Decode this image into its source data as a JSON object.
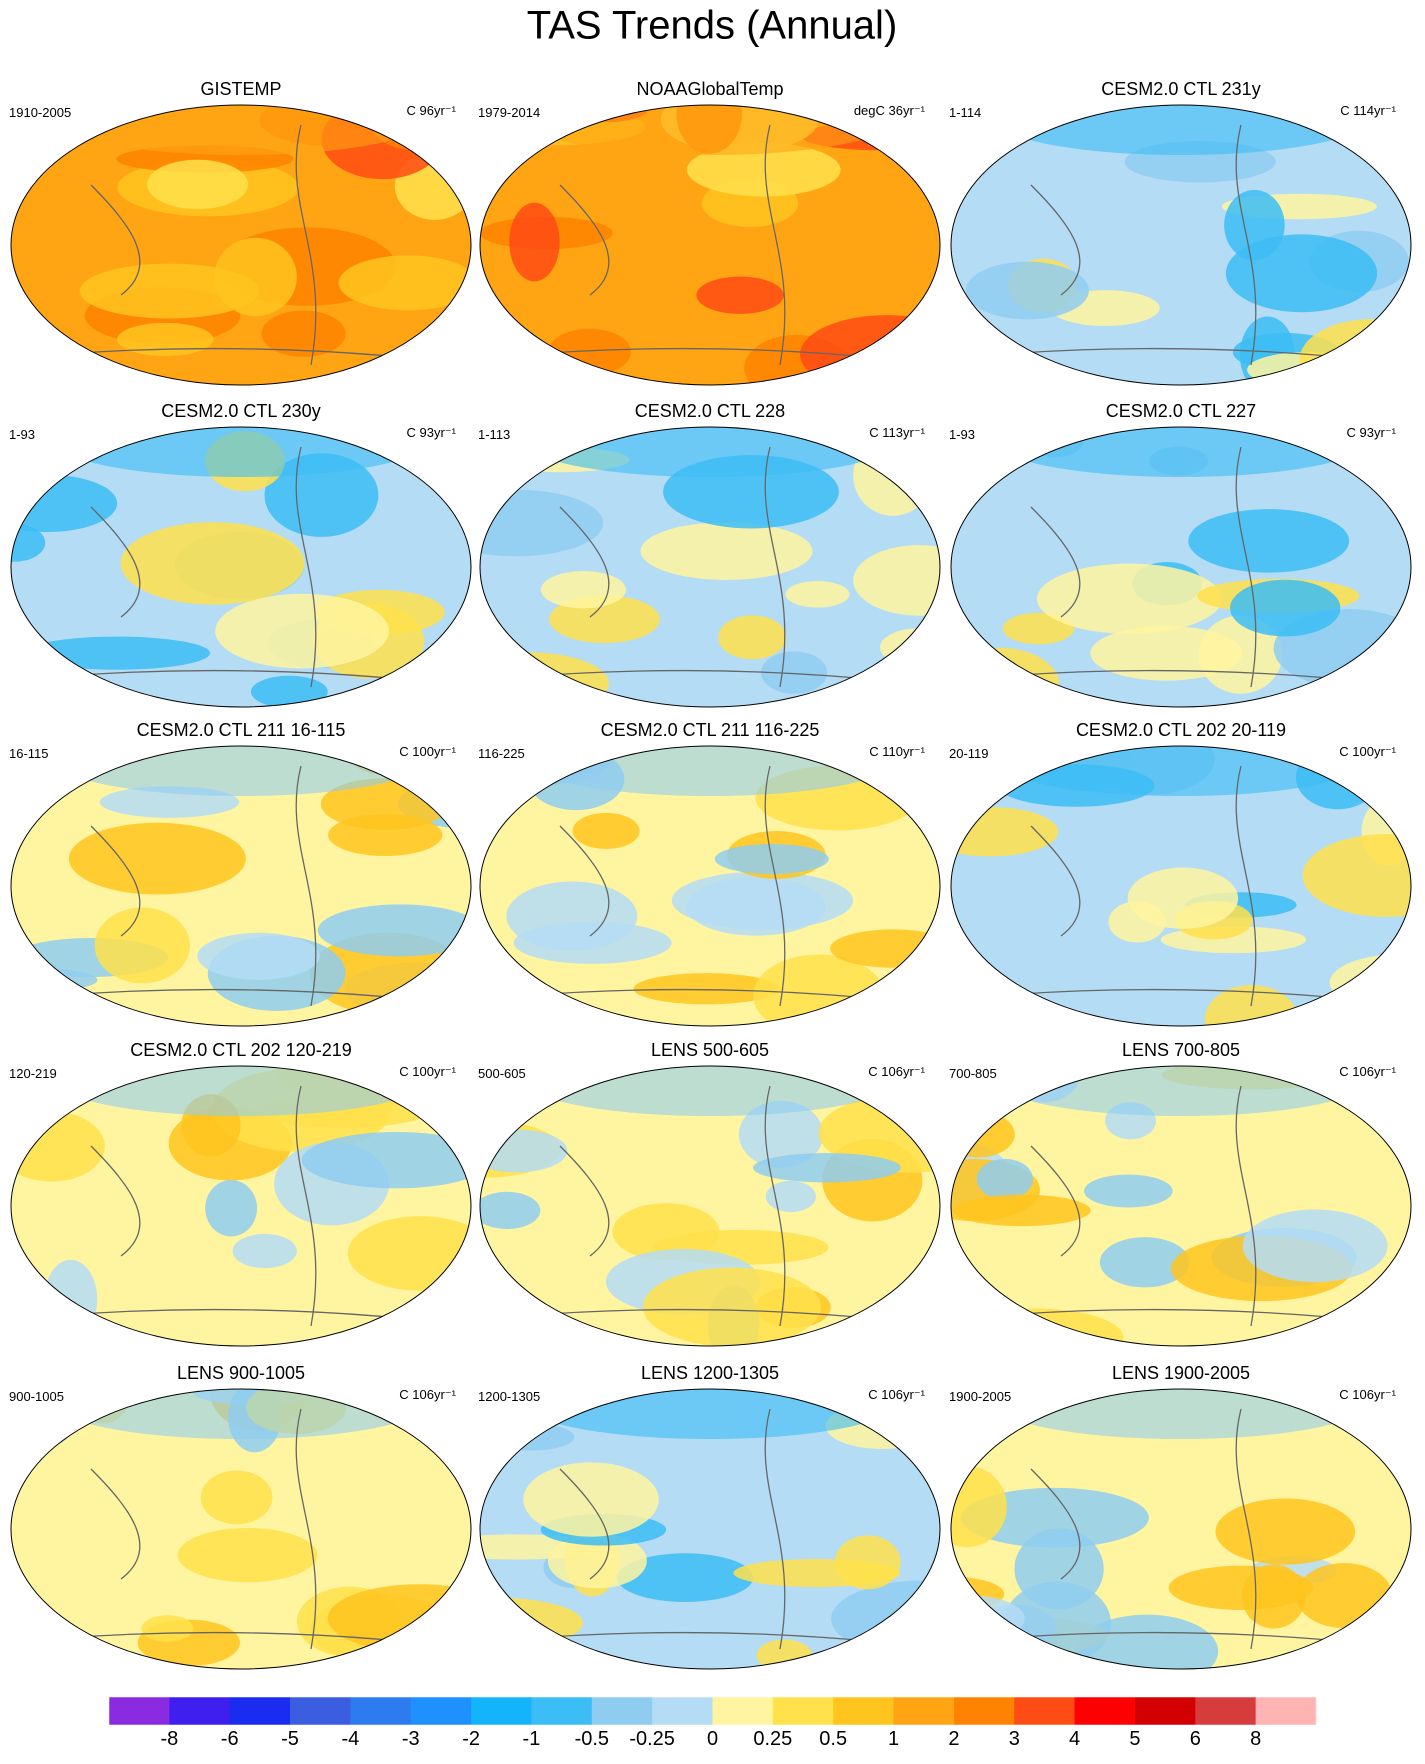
{
  "title": "TAS Trends (Annual)",
  "panels": [
    {
      "title": "GISTEMP",
      "period": "1910-2005",
      "units": "C 96yr⁻¹"
    },
    {
      "title": "NOAAGlobalTemp",
      "period": "1979-2014",
      "units": "degC 36yr⁻¹"
    },
    {
      "title": "CESM2.0 CTL 231y",
      "period": "1-114",
      "units": "C 114yr⁻¹"
    },
    {
      "title": "CESM2.0 CTL 230y",
      "period": "1-93",
      "units": "C 93yr⁻¹"
    },
    {
      "title": "CESM2.0 CTL 228",
      "period": "1-113",
      "units": "C 113yr⁻¹"
    },
    {
      "title": "CESM2.0 CTL 227",
      "period": "1-93",
      "units": "C 93yr⁻¹"
    },
    {
      "title": "CESM2.0 CTL 211 16-115",
      "period": "16-115",
      "units": "C 100yr⁻¹"
    },
    {
      "title": "CESM2.0 CTL 211 116-225",
      "period": "116-225",
      "units": "C 110yr⁻¹"
    },
    {
      "title": "CESM2.0 CTL 202 20-119",
      "period": "20-119",
      "units": "C 100yr⁻¹"
    },
    {
      "title": "CESM2.0 CTL 202 120-219",
      "period": "120-219",
      "units": "C 100yr⁻¹"
    },
    {
      "title": "LENS 500-605",
      "period": "500-605",
      "units": "C 106yr⁻¹"
    },
    {
      "title": "LENS 700-805",
      "period": "700-805",
      "units": "C 106yr⁻¹"
    },
    {
      "title": "LENS 900-1005",
      "period": "900-1005",
      "units": "C 106yr⁻¹"
    },
    {
      "title": "LENS 1200-1305",
      "period": "1200-1305",
      "units": "C 106yr⁻¹"
    },
    {
      "title": "LENS 1900-2005",
      "period": "1900-2005",
      "units": "C 106yr⁻¹"
    }
  ],
  "colorbar": {
    "colors": [
      "#8a2be2",
      "#3e1ff0",
      "#1a2cf0",
      "#3b5ee0",
      "#2e7bef",
      "#1e90ff",
      "#14b4fa",
      "#3cbdf5",
      "#8fcdf0",
      "#b4dcf5",
      "#fff5a0",
      "#ffe14b",
      "#ffc41e",
      "#ffa514",
      "#ff8200",
      "#ff4b14",
      "#ff0000",
      "#d20000",
      "#d73c3c",
      "#ffb4b4"
    ],
    "ticks": [
      -8,
      -6,
      -5,
      -4,
      -3,
      -2,
      -1,
      -0.5,
      -0.25,
      0,
      0.25,
      0.5,
      1,
      2,
      3,
      4,
      5,
      6,
      8
    ]
  }
}
